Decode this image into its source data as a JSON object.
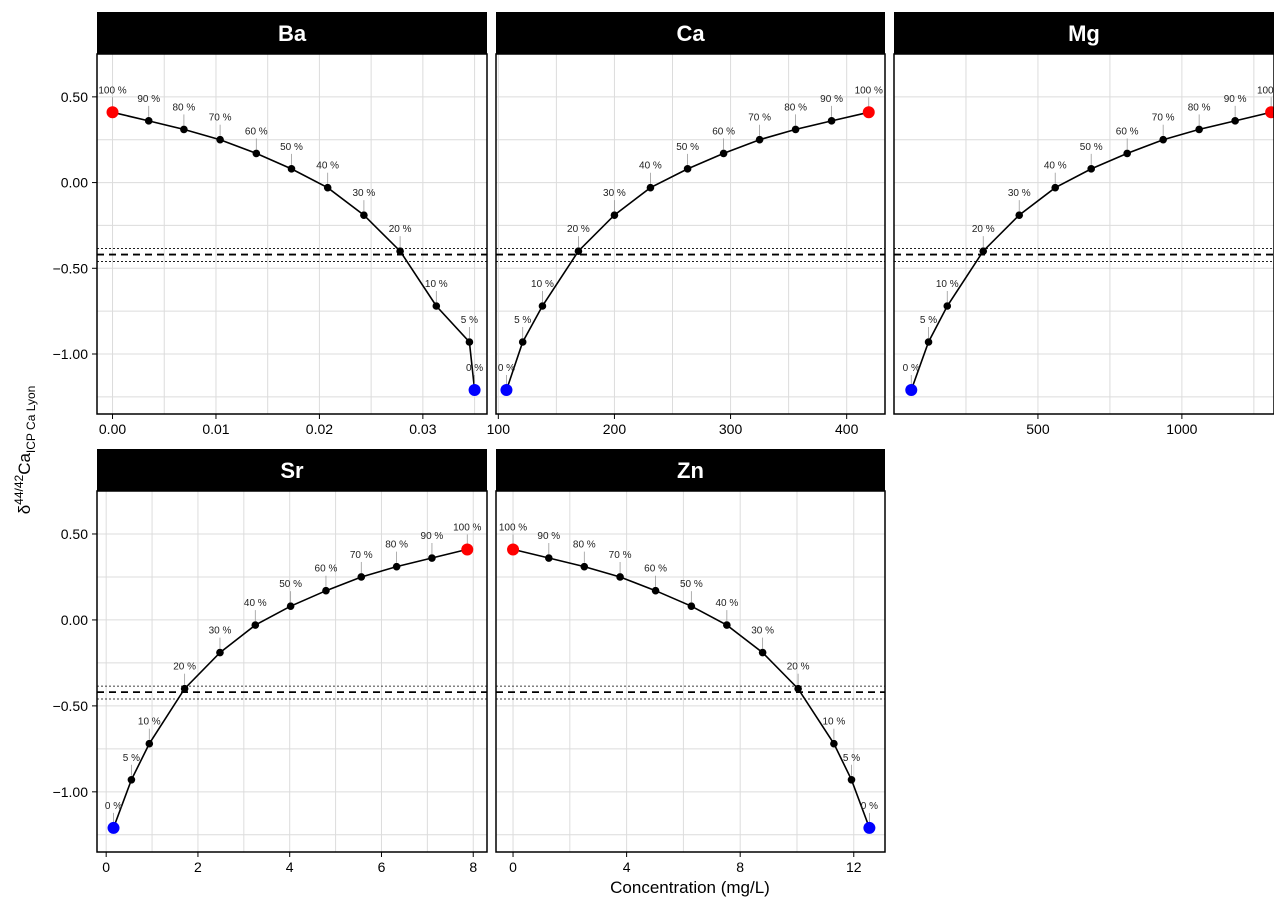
{
  "figure": {
    "xlabel": "Concentration (mg/L)",
    "ylabel": {
      "delta": "δ",
      "sup": "44/42",
      "main": "Ca",
      "sub": "ICP Ca Lyon"
    }
  },
  "shared": {
    "y": [
      -1.21,
      -0.93,
      -0.72,
      -0.4,
      -0.19,
      -0.03,
      0.08,
      0.17,
      0.25,
      0.31,
      0.36,
      0.41
    ],
    "labels": [
      "0 %",
      "5 %",
      "10 %",
      "20 %",
      "30 %",
      "40 %",
      "50 %",
      "60 %",
      "70 %",
      "80 %",
      "90 %",
      "100 %"
    ],
    "ylim": [
      -1.35,
      0.75
    ],
    "yticks": [
      -1.0,
      -0.5,
      0.0,
      0.5
    ],
    "ytick_labels": [
      "−1.00",
      "−0.50",
      "0.00",
      "0.50"
    ],
    "hline_mean": -0.42,
    "hline_band": [
      -0.385,
      -0.46
    ],
    "endpoint_colors": {
      "start": "#0000ff",
      "end": "#ff0000"
    },
    "line_color": "#000000",
    "grid": true
  },
  "chart_data": [
    {
      "type": "line",
      "title": "Ba",
      "x": [
        0.035,
        0.0345,
        0.0313,
        0.0278,
        0.0243,
        0.0208,
        0.0173,
        0.0139,
        0.0104,
        0.0069,
        0.0035,
        0.0
      ],
      "xlim": [
        -0.0015,
        0.0362
      ],
      "xticks": [
        0.0,
        0.01,
        0.02,
        0.03
      ],
      "xtick_labels": [
        "0.00",
        "0.01",
        "0.02",
        "0.03"
      ]
    },
    {
      "type": "line",
      "title": "Ca",
      "x": [
        107,
        121,
        138,
        169,
        200,
        231,
        263,
        294,
        325,
        356,
        387,
        419
      ],
      "xlim": [
        98,
        433
      ],
      "xticks": [
        100,
        200,
        300,
        400
      ],
      "xtick_labels": [
        "100",
        "200",
        "300",
        "400"
      ]
    },
    {
      "type": "line",
      "title": "Mg",
      "x": [
        60,
        120,
        185,
        310,
        435,
        560,
        685,
        810,
        935,
        1060,
        1185,
        1310
      ],
      "xlim": [
        0,
        1320
      ],
      "xticks": [
        500,
        1000
      ],
      "xtick_labels": [
        "500",
        "1000"
      ]
    },
    {
      "type": "line",
      "title": "Sr",
      "x": [
        0.16,
        0.55,
        0.94,
        1.71,
        2.48,
        3.25,
        4.02,
        4.79,
        5.56,
        6.33,
        7.1,
        7.87
      ],
      "xlim": [
        -0.2,
        8.3
      ],
      "xticks": [
        0,
        2,
        4,
        6,
        8
      ],
      "xtick_labels": [
        "0",
        "2",
        "4",
        "6",
        "8"
      ]
    },
    {
      "type": "line",
      "title": "Zn",
      "x": [
        12.55,
        11.92,
        11.3,
        10.04,
        8.79,
        7.53,
        6.28,
        5.02,
        3.77,
        2.51,
        1.26,
        0.0
      ],
      "xlim": [
        -0.6,
        13.1
      ],
      "xticks": [
        0,
        4,
        8,
        12
      ],
      "xtick_labels": [
        "0",
        "4",
        "8",
        "12"
      ]
    }
  ]
}
